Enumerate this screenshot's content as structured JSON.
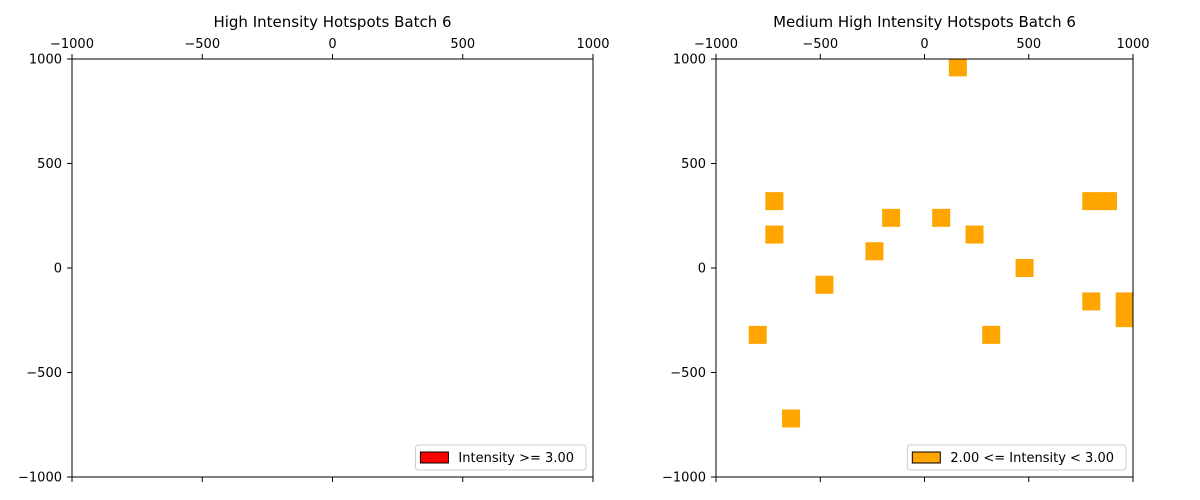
{
  "chart_data": [
    {
      "type": "scatter",
      "title": "High Intensity Hotspots Batch 6",
      "xlabel": "",
      "ylabel": "",
      "xlim": [
        -1000,
        1000
      ],
      "ylim": [
        -1000,
        1000
      ],
      "x_ticks": [
        -1000,
        -500,
        0,
        500,
        1000
      ],
      "y_ticks": [
        1000,
        500,
        0,
        -500,
        -1000
      ],
      "x_tick_labels": [
        "−1000",
        "−500",
        "0",
        "500",
        "1000"
      ],
      "y_tick_labels": [
        "1000",
        "500",
        "0",
        "−500",
        "−1000"
      ],
      "x_axis_position": "top",
      "grid": false,
      "legend": {
        "label": "Intensity >= 3.00",
        "color": "#ff0000",
        "placement": "lower-right"
      },
      "marker": "square",
      "color": "#ff0000",
      "points": []
    },
    {
      "type": "scatter",
      "title": "Medium High Intensity Hotspots Batch 6",
      "xlabel": "",
      "ylabel": "",
      "xlim": [
        -1000,
        1000
      ],
      "ylim": [
        -1000,
        1000
      ],
      "x_ticks": [
        -1000,
        -500,
        0,
        500,
        1000
      ],
      "y_ticks": [
        1000,
        500,
        0,
        -500,
        -1000
      ],
      "x_tick_labels": [
        "−1000",
        "−500",
        "0",
        "500",
        "1000"
      ],
      "y_tick_labels": [
        "1000",
        "500",
        "0",
        "−500",
        "−1000"
      ],
      "x_axis_position": "top",
      "grid": false,
      "legend": {
        "label": "2.00 <= Intensity < 3.00",
        "color": "#ffa500",
        "placement": "lower-right"
      },
      "marker": "square",
      "color": "#ffa500",
      "points": [
        {
          "x": 160,
          "y": 960
        },
        {
          "x": -720,
          "y": 320
        },
        {
          "x": 800,
          "y": 320
        },
        {
          "x": 880,
          "y": 320
        },
        {
          "x": -160,
          "y": 240
        },
        {
          "x": 80,
          "y": 240
        },
        {
          "x": -720,
          "y": 160
        },
        {
          "x": 240,
          "y": 160
        },
        {
          "x": -240,
          "y": 80
        },
        {
          "x": 480,
          "y": 0
        },
        {
          "x": -480,
          "y": -80
        },
        {
          "x": 800,
          "y": -160
        },
        {
          "x": 960,
          "y": -160
        },
        {
          "x": 960,
          "y": -240
        },
        {
          "x": -800,
          "y": -320
        },
        {
          "x": 320,
          "y": -320
        },
        {
          "x": -640,
          "y": -720
        }
      ]
    }
  ]
}
